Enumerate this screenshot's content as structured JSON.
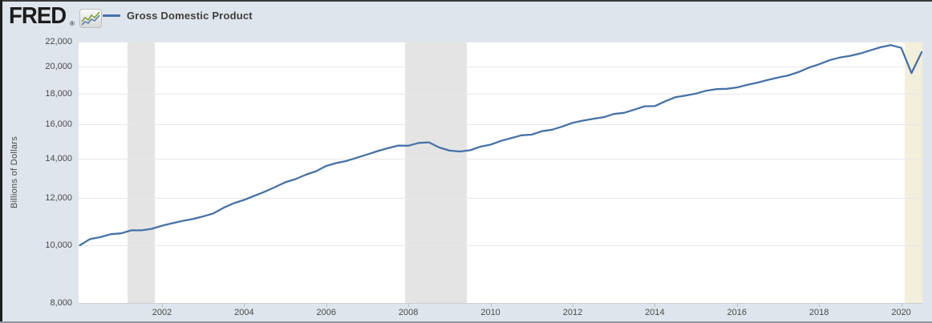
{
  "header": {
    "logo_text": "FRED",
    "registered_mark": "®",
    "legend": {
      "label": "Gross Domestic Product",
      "marker_color": "#4572a7"
    }
  },
  "colors": {
    "page_background": "#dfe5ec",
    "plot_background": "#ffffff",
    "line": "#4572a7",
    "gridline": "#e8e8e8",
    "recession_band": "#e4e4e4",
    "ongoing_recession_band": "#f2efdb",
    "axis_text": "#4a4a4a",
    "logo_icon_green": "#7fa13c",
    "logo_icon_blue": "#5d83ab"
  },
  "chart_data": {
    "type": "line",
    "title": "Gross Domestic Product",
    "ylabel": "Billions of Dollars",
    "xlabel": "",
    "legend_position": "top-left header",
    "grid": "horizontal",
    "y_scale": "log",
    "ylim": [
      8000,
      22000
    ],
    "xlim": [
      1999.969,
      2020.516
    ],
    "y_ticks": [
      8000,
      10000,
      12000,
      14000,
      16000,
      18000,
      20000,
      22000
    ],
    "y_tick_labels": [
      "8,000",
      "10,000",
      "12,000",
      "14,000",
      "16,000",
      "18,000",
      "20,000",
      "22,000"
    ],
    "x_ticks": [
      2002,
      2004,
      2006,
      2008,
      2010,
      2012,
      2014,
      2016,
      2018,
      2020
    ],
    "x_tick_labels": [
      "2002",
      "2004",
      "2006",
      "2008",
      "2010",
      "2012",
      "2014",
      "2016",
      "2018",
      "2020"
    ],
    "recession_bands": [
      {
        "start": 2001.167,
        "end": 2001.833,
        "color": "#e4e4e4"
      },
      {
        "start": 2007.917,
        "end": 2009.417,
        "color": "#e4e4e4"
      },
      {
        "start": 2020.083,
        "end": 2020.516,
        "color": "#f2efdb"
      }
    ],
    "series": [
      {
        "name": "Gross Domestic Product",
        "units": "Billions of Dollars",
        "frequency": "quarterly",
        "x_start": 2000.0,
        "x_step": 0.25,
        "color": "#4572a7",
        "values": [
          10002.2,
          10247.7,
          10319.8,
          10439.0,
          10472.9,
          10597.8,
          10596.3,
          10660.5,
          10788.0,
          10893.2,
          10992.1,
          11071.1,
          11183.9,
          11312.8,
          11566.7,
          11772.2,
          11923.4,
          12112.8,
          12305.3,
          12527.2,
          12767.3,
          12922.7,
          13142.6,
          13324.2,
          13599.2,
          13753.4,
          13870.2,
          14039.6,
          14215.7,
          14402.1,
          14564.1,
          14715.1,
          14706.5,
          14865.7,
          14898.5,
          14608.2,
          14430.9,
          14381.2,
          14448.9,
          14651.2,
          14764.6,
          14980.2,
          15141.6,
          15309.5,
          15351.4,
          15557.5,
          15647.7,
          15842.3,
          16068.8,
          16207.1,
          16319.5,
          16420.4,
          16629.1,
          16699.6,
          16911.1,
          17133.1,
          17144.3,
          17462.7,
          17743.2,
          17852.5,
          17991.3,
          18193.7,
          18306.9,
          18332.1,
          18425.3,
          18611.6,
          18775.5,
          18968.0,
          19148.2,
          19304.5,
          19561.9,
          19894.8,
          20155.5,
          20470.2,
          20687.3,
          20819.3,
          21013.1,
          21272.4,
          21531.8,
          21706.5,
          21481.4,
          19477.4,
          21138.6
        ]
      }
    ]
  }
}
